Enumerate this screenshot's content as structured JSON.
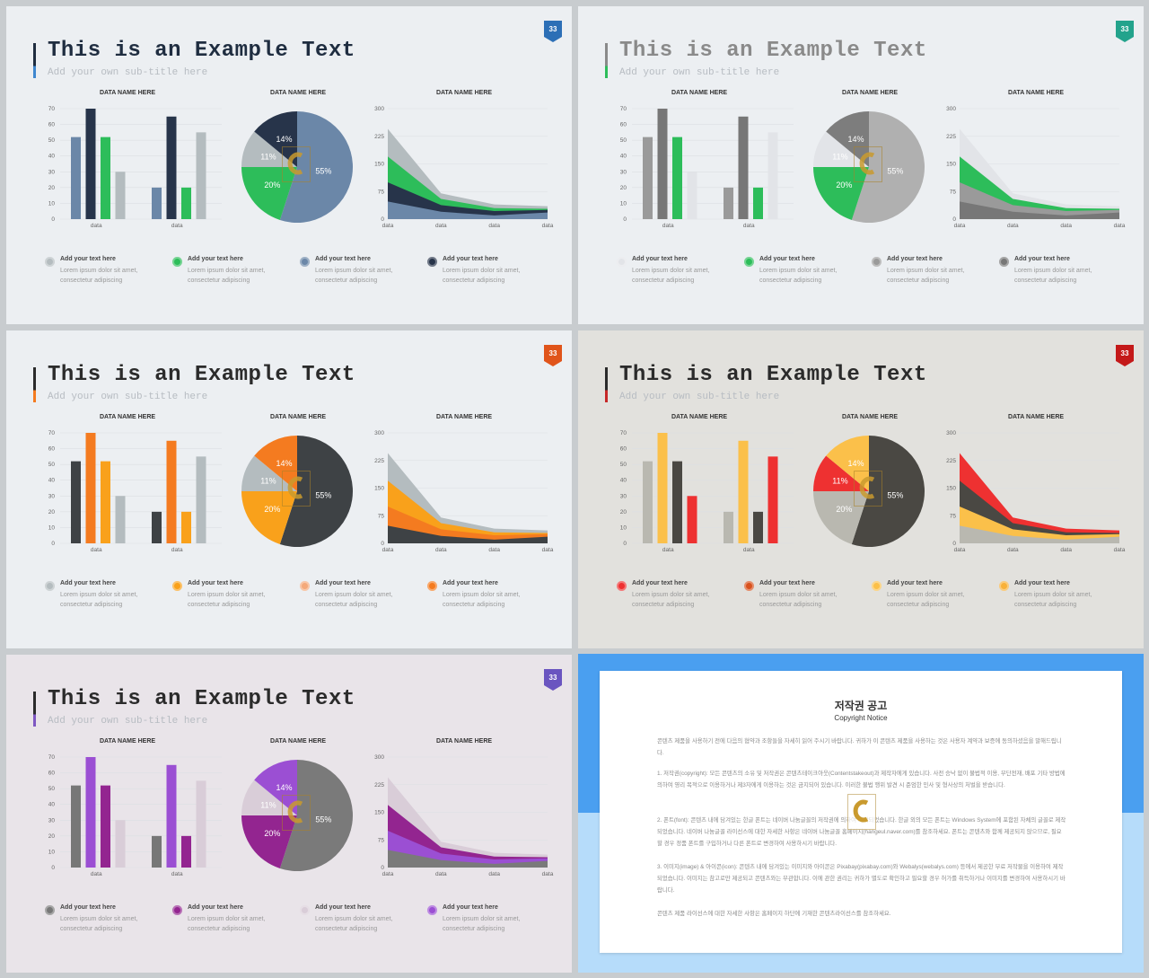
{
  "slides": [
    {
      "title": "This is an Example Text",
      "subtitle": "Add your own sub-title here",
      "badge": "33",
      "bg": "#eceff2",
      "title_color": "#1f2d40",
      "bar_accent": "#3f87cf",
      "badge_color": "#2c6fb6",
      "bar_chart": {
        "title": "DATA NAME HERE",
        "y_ticks": [
          "0",
          "10",
          "20",
          "30",
          "40",
          "50",
          "60",
          "70"
        ],
        "categories": [
          "data",
          "data"
        ],
        "series": [
          {
            "color": "#6b87a8",
            "values": [
              52,
              20
            ]
          },
          {
            "color": "#27344a",
            "values": [
              70,
              65
            ]
          },
          {
            "color": "#2dbd5a",
            "values": [
              52,
              20
            ]
          },
          {
            "color": "#b4bcbf",
            "values": [
              30,
              55
            ]
          }
        ]
      },
      "pie_chart": {
        "title": "DATA NAME HERE",
        "slices": [
          {
            "label": "55%",
            "value": 55,
            "color": "#6b87a8"
          },
          {
            "label": "20%",
            "value": 20,
            "color": "#2dbd5a"
          },
          {
            "label": "11%",
            "value": 11,
            "color": "#b4bcbf"
          },
          {
            "label": "14%",
            "value": 14,
            "color": "#27344a"
          }
        ]
      },
      "area_chart": {
        "title": "DATA NAME HERE",
        "y_ticks": [
          "0",
          "75",
          "150",
          "225",
          "300"
        ],
        "categories": [
          "data",
          "data",
          "data",
          "data"
        ],
        "layers": [
          {
            "color": "#b4bcbf",
            "values": [
              245,
              70,
              40,
              35
            ]
          },
          {
            "color": "#2dbd5a",
            "values": [
              170,
              55,
              30,
              28
            ]
          },
          {
            "color": "#27344a",
            "values": [
              100,
              38,
              22,
              25
            ]
          },
          {
            "color": "#6b87a8",
            "values": [
              48,
              20,
              10,
              18
            ]
          }
        ]
      },
      "legend": [
        {
          "color": "#b4bcbf",
          "heading": "Add your text here",
          "body": "Lorem ipsum dolor sit amet, consectetur adipiscing"
        },
        {
          "color": "#2dbd5a",
          "heading": "Add your text here",
          "body": "Lorem ipsum dolor sit amet, consectetur adipiscing"
        },
        {
          "color": "#6b87a8",
          "heading": "Add your text here",
          "body": "Lorem ipsum dolor sit amet, consectetur adipiscing"
        },
        {
          "color": "#27344a",
          "heading": "Add your text here",
          "body": "Lorem ipsum dolor sit amet, consectetur adipiscing"
        }
      ]
    },
    {
      "title": "This is an Example Text",
      "subtitle": "Add your own sub-title here",
      "badge": "33",
      "bg": "#eceff2",
      "title_color": "#8a8a8a",
      "bar_accent": "#2dbd5a",
      "badge_color": "#23a38c",
      "bar_chart": {
        "title": "DATA NAME HERE",
        "y_ticks": [
          "0",
          "10",
          "20",
          "30",
          "40",
          "50",
          "60",
          "70"
        ],
        "categories": [
          "data",
          "data"
        ],
        "series": [
          {
            "color": "#9a9a9a",
            "values": [
              52,
              20
            ]
          },
          {
            "color": "#777777",
            "values": [
              70,
              65
            ]
          },
          {
            "color": "#2dbd5a",
            "values": [
              52,
              20
            ]
          },
          {
            "color": "#e2e4e8",
            "values": [
              30,
              55
            ]
          }
        ]
      },
      "pie_chart": {
        "title": "DATA NAME HERE",
        "slices": [
          {
            "label": "55%",
            "value": 55,
            "color": "#b0b0b0"
          },
          {
            "label": "20%",
            "value": 20,
            "color": "#2dbd5a"
          },
          {
            "label": "11%",
            "value": 11,
            "color": "#e2e4e8"
          },
          {
            "label": "14%",
            "value": 14,
            "color": "#7d7d7d"
          }
        ]
      },
      "area_chart": {
        "title": "DATA NAME HERE",
        "y_ticks": [
          "0",
          "75",
          "150",
          "225",
          "300"
        ],
        "categories": [
          "data",
          "data",
          "data",
          "data"
        ],
        "layers": [
          {
            "color": "#e2e4e8",
            "values": [
              245,
              70,
              40,
              35
            ]
          },
          {
            "color": "#2dbd5a",
            "values": [
              170,
              55,
              30,
              28
            ]
          },
          {
            "color": "#9a9a9a",
            "values": [
              100,
              38,
              22,
              25
            ]
          },
          {
            "color": "#777777",
            "values": [
              48,
              20,
              10,
              18
            ]
          }
        ]
      },
      "legend": [
        {
          "color": "#e2e4e8",
          "heading": "Add your text here",
          "body": "Lorem ipsum dolor sit amet, consectetur adipiscing"
        },
        {
          "color": "#2dbd5a",
          "heading": "Add your text here",
          "body": "Lorem ipsum dolor sit amet, consectetur adipiscing"
        },
        {
          "color": "#9a9a9a",
          "heading": "Add your text here",
          "body": "Lorem ipsum dolor sit amet, consectetur adipiscing"
        },
        {
          "color": "#777777",
          "heading": "Add your text here",
          "body": "Lorem ipsum dolor sit amet, consectetur adipiscing"
        }
      ]
    },
    {
      "title": "This is an Example Text",
      "subtitle": "Add your own sub-title here",
      "badge": "33",
      "bg": "#eceff2",
      "title_color": "#2b2b2b",
      "bar_accent": "#f47b20",
      "badge_color": "#e0541a",
      "bar_chart": {
        "title": "DATA NAME HERE",
        "y_ticks": [
          "0",
          "10",
          "20",
          "30",
          "40",
          "50",
          "60",
          "70"
        ],
        "categories": [
          "data",
          "data"
        ],
        "series": [
          {
            "color": "#3e4245",
            "values": [
              52,
              20
            ]
          },
          {
            "color": "#f47b20",
            "values": [
              70,
              65
            ]
          },
          {
            "color": "#f9a11b",
            "values": [
              52,
              20
            ]
          },
          {
            "color": "#b4bcbf",
            "values": [
              30,
              55
            ]
          }
        ]
      },
      "pie_chart": {
        "title": "DATA NAME HERE",
        "slices": [
          {
            "label": "55%",
            "value": 55,
            "color": "#3e4245"
          },
          {
            "label": "20%",
            "value": 20,
            "color": "#f9a11b"
          },
          {
            "label": "11%",
            "value": 11,
            "color": "#b4bcbf"
          },
          {
            "label": "14%",
            "value": 14,
            "color": "#f47b20"
          }
        ]
      },
      "area_chart": {
        "title": "DATA NAME HERE",
        "y_ticks": [
          "0",
          "75",
          "150",
          "225",
          "300"
        ],
        "categories": [
          "data",
          "data",
          "data",
          "data"
        ],
        "layers": [
          {
            "color": "#b4bcbf",
            "values": [
              245,
              70,
              40,
              35
            ]
          },
          {
            "color": "#f9a11b",
            "values": [
              170,
              55,
              30,
              28
            ]
          },
          {
            "color": "#f47b20",
            "values": [
              100,
              38,
              22,
              25
            ]
          },
          {
            "color": "#3e4245",
            "values": [
              48,
              20,
              10,
              18
            ]
          }
        ]
      },
      "legend": [
        {
          "color": "#b4bcbf",
          "heading": "Add your text here",
          "body": "Lorem ipsum dolor sit amet, consectetur adipiscing"
        },
        {
          "color": "#f9a11b",
          "heading": "Add your text here",
          "body": "Lorem ipsum dolor sit amet, consectetur adipiscing"
        },
        {
          "color": "#f4a97a",
          "heading": "Add your text here",
          "body": "Lorem ipsum dolor sit amet, consectetur adipiscing"
        },
        {
          "color": "#f47b20",
          "heading": "Add your text here",
          "body": "Lorem ipsum dolor sit amet, consectetur adipiscing"
        }
      ]
    },
    {
      "title": "This is an Example Text",
      "subtitle": "Add your own sub-title here",
      "badge": "33",
      "bg": "#e2e1dd",
      "title_color": "#2b2b2b",
      "bar_accent": "#c62828",
      "badge_color": "#c41919",
      "bar_chart": {
        "title": "DATA NAME HERE",
        "y_ticks": [
          "0",
          "10",
          "20",
          "30",
          "40",
          "50",
          "60",
          "70"
        ],
        "categories": [
          "data",
          "data"
        ],
        "series": [
          {
            "color": "#b9b8b0",
            "values": [
              52,
              20
            ]
          },
          {
            "color": "#fbc04a",
            "values": [
              70,
              65
            ]
          },
          {
            "color": "#4a4843",
            "values": [
              52,
              20
            ]
          },
          {
            "color": "#ee3131",
            "values": [
              30,
              55
            ]
          }
        ]
      },
      "pie_chart": {
        "title": "DATA NAME HERE",
        "slices": [
          {
            "label": "55%",
            "value": 55,
            "color": "#4a4843"
          },
          {
            "label": "20%",
            "value": 20,
            "color": "#b9b8b0"
          },
          {
            "label": "11%",
            "value": 11,
            "color": "#ee3131"
          },
          {
            "label": "14%",
            "value": 14,
            "color": "#fbc04a"
          }
        ]
      },
      "area_chart": {
        "title": "DATA NAME HERE",
        "y_ticks": [
          "0",
          "75",
          "150",
          "225",
          "300"
        ],
        "categories": [
          "data",
          "data",
          "data",
          "data"
        ],
        "layers": [
          {
            "color": "#ee3131",
            "values": [
              245,
              70,
              40,
              35
            ]
          },
          {
            "color": "#4a4843",
            "values": [
              170,
              55,
              30,
              28
            ]
          },
          {
            "color": "#fbc04a",
            "values": [
              100,
              38,
              22,
              25
            ]
          },
          {
            "color": "#b9b8b0",
            "values": [
              48,
              20,
              10,
              18
            ]
          }
        ]
      },
      "legend": [
        {
          "color": "#ee3131",
          "heading": "Add your text here",
          "body": "Lorem ipsum dolor sit amet, consectetur adipiscing"
        },
        {
          "color": "#d8521e",
          "heading": "Add your text here",
          "body": "Lorem ipsum dolor sit amet, consectetur adipiscing"
        },
        {
          "color": "#fbc04a",
          "heading": "Add your text here",
          "body": "Lorem ipsum dolor sit amet, consectetur adipiscing"
        },
        {
          "color": "#f8b13a",
          "heading": "Add your text here",
          "body": "Lorem ipsum dolor sit amet, consectetur adipiscing"
        }
      ]
    },
    {
      "title": "This is an Example Text",
      "subtitle": "Add your own sub-title here",
      "badge": "33",
      "bg": "#e9e4e9",
      "title_color": "#2b2b2b",
      "bar_accent": "#7e57c2",
      "badge_color": "#6a55c0",
      "bar_chart": {
        "title": "DATA NAME HERE",
        "y_ticks": [
          "0",
          "10",
          "20",
          "30",
          "40",
          "50",
          "60",
          "70"
        ],
        "categories": [
          "data",
          "data"
        ],
        "series": [
          {
            "color": "#777777",
            "values": [
              52,
              20
            ]
          },
          {
            "color": "#9b4fd3",
            "values": [
              70,
              65
            ]
          },
          {
            "color": "#932590",
            "values": [
              52,
              20
            ]
          },
          {
            "color": "#d9cdd8",
            "values": [
              30,
              55
            ]
          }
        ]
      },
      "pie_chart": {
        "title": "DATA NAME HERE",
        "slices": [
          {
            "label": "55%",
            "value": 55,
            "color": "#7a7a7a"
          },
          {
            "label": "20%",
            "value": 20,
            "color": "#932590"
          },
          {
            "label": "11%",
            "value": 11,
            "color": "#d9cdd8"
          },
          {
            "label": "14%",
            "value": 14,
            "color": "#9b4fd3"
          }
        ]
      },
      "area_chart": {
        "title": "DATA NAME HERE",
        "y_ticks": [
          "0",
          "75",
          "150",
          "225",
          "300"
        ],
        "categories": [
          "data",
          "data",
          "data",
          "data"
        ],
        "layers": [
          {
            "color": "#d9cdd8",
            "values": [
              245,
              70,
              40,
              35
            ]
          },
          {
            "color": "#932590",
            "values": [
              170,
              55,
              30,
              28
            ]
          },
          {
            "color": "#9b4fd3",
            "values": [
              100,
              38,
              22,
              25
            ]
          },
          {
            "color": "#7a7a7a",
            "values": [
              48,
              20,
              10,
              18
            ]
          }
        ]
      },
      "legend": [
        {
          "color": "#777777",
          "heading": "Add your text here",
          "body": "Lorem ipsum dolor sit amet, consectetur adipiscing"
        },
        {
          "color": "#932590",
          "heading": "Add your text here",
          "body": "Lorem ipsum dolor sit amet, consectetur adipiscing"
        },
        {
          "color": "#d9cdd8",
          "heading": "Add your text here",
          "body": "Lorem ipsum dolor sit amet, consectetur adipiscing"
        },
        {
          "color": "#9b4fd3",
          "heading": "Add your text here",
          "body": "Lorem ipsum dolor sit amet, consectetur adipiscing"
        }
      ]
    }
  ],
  "notice": {
    "title": "저작권 공고",
    "subtitle": "Copyright Notice",
    "top_color": "#4a9ff0",
    "bottom_color": "#b6dcfa",
    "paragraphs": [
      "콘텐츠 제품을 사용하기 전에 다음의 협약과 조항들을 자세히 읽어 주시기 바랍니다. 귀하가 이 콘텐츠 제품을 사용하는 것은 사용자 계약과 보증에 동의하셨음을 말해드립니다.",
      "1. 저작권(copyright): 모든 콘텐츠의 소유 및 저작권은 콘텐츠테이크아웃(Contentstakeout)과 제작자에게 있습니다. 사전 승낙 없이 불법적 이용, 무단전재, 배포 기타 방법에 의하여 영리 목적으로 이용하거나 제3자에게 이용하는 것은 금지되어 있습니다. 이러한 불법 행위 발견 시 준엄한 민사 및 형사상의 처벌을 받습니다.",
      "2. 폰트(font): 콘텐츠 내에 담겨있는 한글 폰트는 네이버 나눔글꼴의 저작권에 의하여 제작되었습니다. 한글 외의 모든 폰트는 Windows System에 포함된 자체의 글꼴로 제작되었습니다. 네이버 나눔글꼴 라이선스에 대한 자세한 사항은 네이버 나눔글꼴 홈페이지(hangeul.naver.com)를 참조하세요. 폰트는 콘텐츠와 함께 제공되지 않으므로, 필요할 경우 정품 폰트를 구입하거나 다른 폰트로 변경하여 사용하시기 바랍니다.",
      "3. 이미지(image) & 아이콘(icon): 콘텐츠 내에 담겨있는 이미지와 아이콘은 Pixabay(pixabay.com)와 Webalys(webalys.com) 등에서 제공한 무료 저작물을 이용하여 제작되었습니다. 이미지는 참고로만 제공되고 콘텐츠와는 무관합니다. 이에 관한 권리는 귀하가 별도로 확인하고 필요할 경우 허가를 취득하거나 이미지를 변경하여 사용하시기 바랍니다.",
      "콘텐츠 제품 라이선스에 대한 자세한 사항은 홈페이지 하단에 기재한 콘텐츠라이선스를 참조하세요."
    ]
  }
}
